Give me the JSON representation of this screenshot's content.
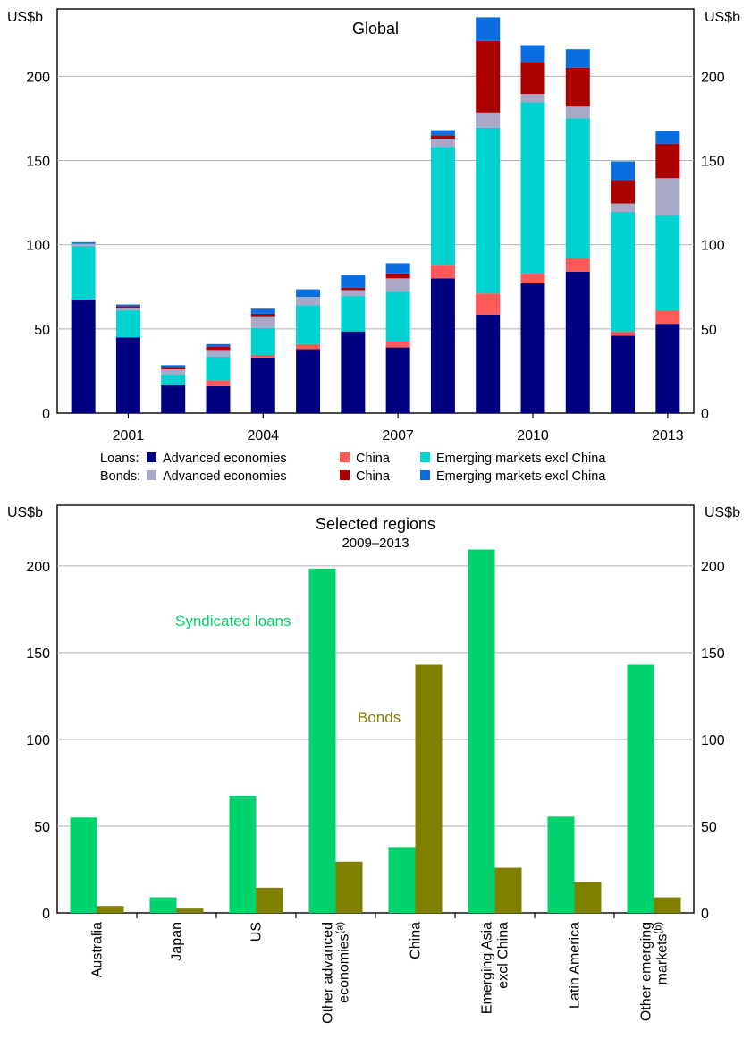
{
  "chart_data": [
    {
      "type": "bar",
      "stacked": true,
      "title": "Global",
      "unit_left": "US$b",
      "unit_right": "US$b",
      "x": [
        2000,
        2001,
        2002,
        2003,
        2004,
        2005,
        2006,
        2007,
        2008,
        2009,
        2010,
        2011,
        2012,
        2013
      ],
      "x_tick_labels": [
        "2001",
        "2004",
        "2007",
        "2010",
        "2013"
      ],
      "x_tick_values": [
        2001,
        2004,
        2007,
        2010,
        2013
      ],
      "ylim": [
        0,
        240
      ],
      "yticks": [
        0,
        50,
        100,
        150,
        200
      ],
      "grid": true,
      "legend": {
        "rows": [
          {
            "prefix": "Loans:",
            "items": [
              {
                "label": "Advanced economies",
                "color": "#000080"
              },
              {
                "label": "China",
                "color": "#ff5959"
              },
              {
                "label": "Emerging markets excl China",
                "color": "#00d2d2"
              }
            ]
          },
          {
            "prefix": "Bonds:",
            "items": [
              {
                "label": "Advanced economies",
                "color": "#a8a8c8"
              },
              {
                "label": "China",
                "color": "#aa0000"
              },
              {
                "label": "Emerging markets excl China",
                "color": "#0a6ee0"
              }
            ]
          }
        ],
        "placement": "bottom"
      },
      "series": [
        {
          "name": "Loans: Advanced economies",
          "color": "#000080",
          "values": [
            67.5,
            45,
            16.5,
            16,
            33,
            38,
            48.5,
            39,
            80,
            58.5,
            77,
            84,
            46,
            53
          ]
        },
        {
          "name": "Loans: China",
          "color": "#ff5959",
          "values": [
            0,
            0,
            0,
            3.5,
            1.5,
            3,
            0,
            3.5,
            8,
            12.5,
            6,
            8,
            2.5,
            8
          ]
        },
        {
          "name": "Loans: Emerging markets excl China",
          "color": "#00d2d2",
          "values": [
            31.5,
            16,
            6.5,
            14,
            16,
            23,
            21,
            29.5,
            70,
            98.5,
            101.5,
            83,
            71,
            56.5
          ]
        },
        {
          "name": "Bonds: Advanced economies",
          "color": "#a8a8c8",
          "values": [
            1.5,
            1.5,
            3,
            4,
            7,
            5,
            3.5,
            8,
            5,
            9,
            5,
            7,
            5,
            22
          ]
        },
        {
          "name": "Bonds: China",
          "color": "#aa0000",
          "values": [
            0,
            1,
            1,
            2,
            1.5,
            0,
            1.5,
            3,
            2,
            42.5,
            19,
            23,
            14,
            20.5
          ]
        },
        {
          "name": "Bonds: Emerging markets excl China",
          "color": "#0a6ee0",
          "values": [
            1,
            1,
            1.5,
            1.5,
            3,
            4.5,
            7.5,
            6,
            3,
            14,
            10,
            11,
            11,
            7.5
          ]
        }
      ]
    },
    {
      "type": "bar",
      "title": "Selected regions",
      "subtitle": "2009–2013",
      "unit_left": "US$b",
      "unit_right": "US$b",
      "categories": [
        {
          "lines": [
            "Australia"
          ]
        },
        {
          "lines": [
            "Japan"
          ]
        },
        {
          "lines": [
            "US"
          ]
        },
        {
          "lines": [
            "Other advanced",
            "economies"
          ],
          "sup": "(a)"
        },
        {
          "lines": [
            "China"
          ]
        },
        {
          "lines": [
            "Emerging Asia",
            "excl China"
          ]
        },
        {
          "lines": [
            "Latin America"
          ]
        },
        {
          "lines": [
            "Other emerging",
            "markets"
          ],
          "sup": "(b)"
        }
      ],
      "ylim": [
        0,
        235
      ],
      "yticks": [
        0,
        50,
        100,
        150,
        200
      ],
      "grid": true,
      "series": [
        {
          "name": "Syndicated loans",
          "color": "#00d26e",
          "values": [
            55,
            9,
            67.5,
            198.5,
            38,
            209.5,
            55.5,
            143
          ]
        },
        {
          "name": "Bonds",
          "color": "#808000",
          "values": [
            4,
            2.5,
            14.5,
            29.5,
            143,
            26,
            18,
            9
          ]
        }
      ]
    }
  ]
}
